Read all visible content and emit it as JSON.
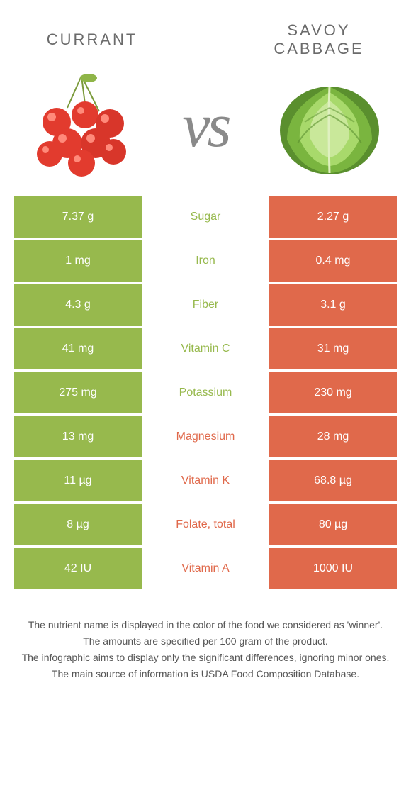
{
  "colors": {
    "left": "#97b94d",
    "right": "#e0694b",
    "leftText": "#97b94d",
    "rightText": "#e0694b"
  },
  "foods": {
    "left": "Currant",
    "right": "Savoy cabbage"
  },
  "vs": "vs",
  "rows": [
    {
      "nutrient": "Sugar",
      "left": "7.37 g",
      "right": "2.27 g",
      "winner": "left"
    },
    {
      "nutrient": "Iron",
      "left": "1 mg",
      "right": "0.4 mg",
      "winner": "left"
    },
    {
      "nutrient": "Fiber",
      "left": "4.3 g",
      "right": "3.1 g",
      "winner": "left"
    },
    {
      "nutrient": "Vitamin C",
      "left": "41 mg",
      "right": "31 mg",
      "winner": "left"
    },
    {
      "nutrient": "Potassium",
      "left": "275 mg",
      "right": "230 mg",
      "winner": "left"
    },
    {
      "nutrient": "Magnesium",
      "left": "13 mg",
      "right": "28 mg",
      "winner": "right"
    },
    {
      "nutrient": "Vitamin K",
      "left": "11 µg",
      "right": "68.8 µg",
      "winner": "right"
    },
    {
      "nutrient": "Folate, total",
      "left": "8 µg",
      "right": "80 µg",
      "winner": "right"
    },
    {
      "nutrient": "Vitamin A",
      "left": "42 IU",
      "right": "1000 IU",
      "winner": "right"
    }
  ],
  "footnotes": [
    "The nutrient name is displayed in the color of the food we considered as 'winner'.",
    "The amounts are specified per 100 gram of the product.",
    "The infographic aims to display only the significant differences, ignoring minor ones.",
    "The main source of information is USDA Food Composition Database."
  ]
}
